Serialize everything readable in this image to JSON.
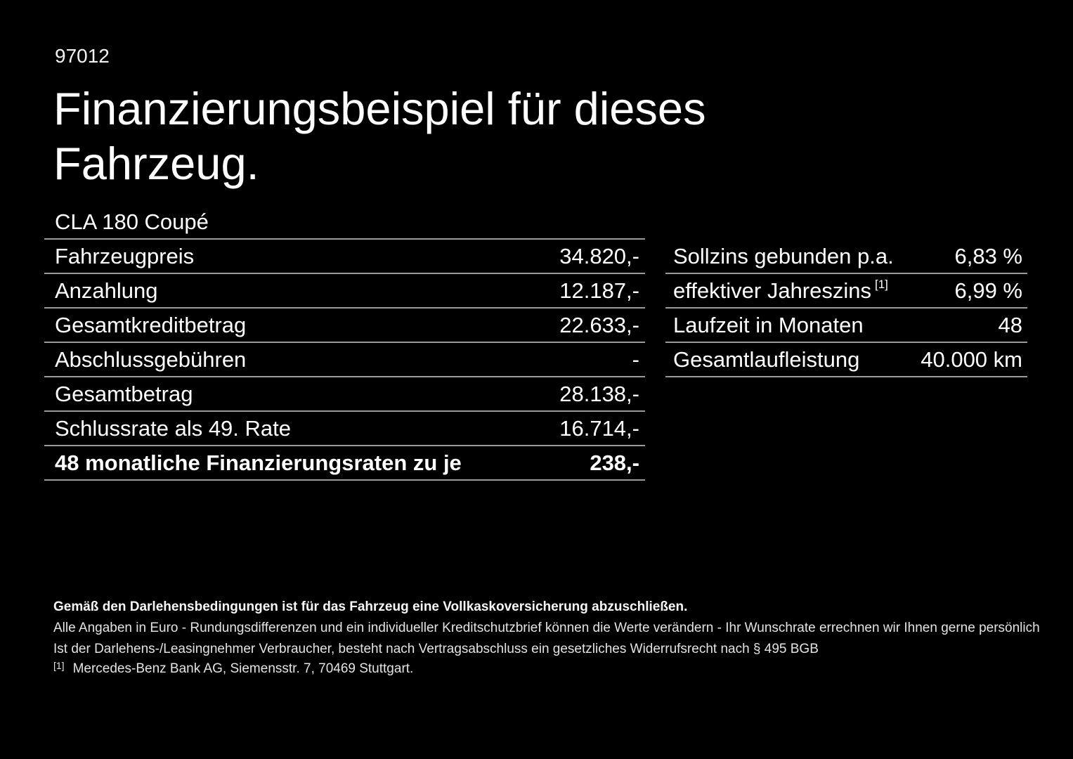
{
  "meta": {
    "doc_number": "97012"
  },
  "title": {
    "line1": "Finanzierungsbeispiel für dieses",
    "line2": "Fahrzeug."
  },
  "vehicle": {
    "model": "CLA 180 Coupé"
  },
  "finance_table": {
    "rows": [
      {
        "label": "Fahrzeugpreis",
        "value": "34.820,-"
      },
      {
        "label": "Anzahlung",
        "value": "12.187,-"
      },
      {
        "label": "Gesamtkreditbetrag",
        "value": "22.633,-"
      },
      {
        "label": "Abschlussgebühren",
        "value": "-"
      },
      {
        "label": "Gesamtbetrag",
        "value": "28.138,-"
      },
      {
        "label": "Schlussrate als 49. Rate",
        "value": "16.714,-"
      },
      {
        "label": "48 monatliche Finanzierungsraten zu je",
        "value": "238,-"
      }
    ]
  },
  "conditions_table": {
    "rows": [
      {
        "label": "Sollzins gebunden p.a.",
        "footnote": "",
        "value": "6,83 %"
      },
      {
        "label": "effektiver Jahreszins",
        "footnote": "[1]",
        "value": "6,99 %"
      },
      {
        "label": "Laufzeit in Monaten",
        "footnote": "",
        "value": "48"
      },
      {
        "label": "Gesamtlaufleistung",
        "footnote": "",
        "value": "40.000 km"
      }
    ]
  },
  "disclaimer": {
    "insurance_note": "Gemäß den Darlehensbedingungen ist für das Fahrzeug eine Vollkaskoversicherung abzuschließen.",
    "rounding_note": "Alle Angaben in Euro - Rundungsdifferenzen und ein individueller Kreditschutzbrief können die Werte verändern - Ihr Wunschrate errechnen wir Ihnen gerne persönlich",
    "withdrawal_note": "Ist der Darlehens-/Leasingnehmer Verbraucher, besteht nach Vertragsabschluss ein gesetzliches Widerrufsrecht nach § 495 BGB",
    "footnote_marker": "[1]",
    "footnote_text": "Mercedes-Benz Bank AG, Siemensstr. 7, 70469 Stuttgart."
  },
  "colors": {
    "background": "#000000",
    "text": "#ffffff",
    "divider": "#9a9a9a",
    "fine_print": "#e3e3e3"
  }
}
